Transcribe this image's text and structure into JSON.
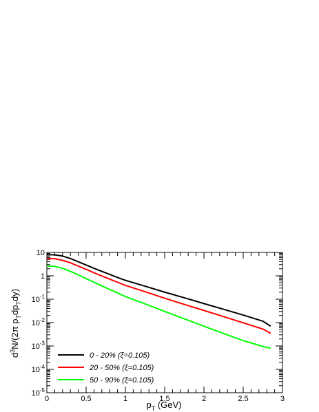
{
  "chart_data": {
    "type": "line",
    "title": "",
    "xlabel": "p_T (GeV)",
    "ylabel": "d³N/(2π p_T dp_T dy)",
    "xlim": [
      0,
      3
    ],
    "ylim": [
      1e-05,
      10
    ],
    "yscale": "log",
    "grid": false,
    "legend_position": "bottom-left",
    "x_ticks": [
      {
        "value": 0,
        "label": "0"
      },
      {
        "value": 0.5,
        "label": "0.5"
      },
      {
        "value": 1,
        "label": "1"
      },
      {
        "value": 1.5,
        "label": "1.5"
      },
      {
        "value": 2,
        "label": "2"
      },
      {
        "value": 2.5,
        "label": "2.5"
      },
      {
        "value": 3,
        "label": "3"
      }
    ],
    "y_ticks": [
      {
        "value": 1e-05,
        "label_base": "10",
        "label_exp": "-5"
      },
      {
        "value": 0.0001,
        "label_base": "10",
        "label_exp": "-4"
      },
      {
        "value": 0.001,
        "label_base": "10",
        "label_exp": "-3"
      },
      {
        "value": 0.01,
        "label_base": "10",
        "label_exp": "-2"
      },
      {
        "value": 0.1,
        "label_base": "10",
        "label_exp": "-1"
      },
      {
        "value": 1,
        "label_base": "1",
        "label_exp": ""
      },
      {
        "value": 10,
        "label_base": "10",
        "label_exp": ""
      }
    ],
    "series": [
      {
        "name": "0 - 20%  (ξ=0.105)",
        "color": "#000000",
        "x": [
          0,
          0.1,
          0.2,
          0.3,
          0.4,
          0.5,
          0.6,
          0.7,
          0.8,
          0.9,
          1.0,
          1.25,
          1.5,
          1.75,
          2.0,
          2.25,
          2.5,
          2.75,
          2.85
        ],
        "y": [
          8.0,
          7.9,
          7.0,
          5.5,
          4.0,
          2.9,
          2.1,
          1.55,
          1.15,
          0.85,
          0.64,
          0.36,
          0.2,
          0.115,
          0.065,
          0.037,
          0.021,
          0.0115,
          0.007
        ]
      },
      {
        "name": "20 - 50% (ξ=0.105)",
        "color": "#ff0000",
        "x": [
          0,
          0.1,
          0.2,
          0.3,
          0.4,
          0.5,
          0.6,
          0.7,
          0.8,
          0.9,
          1.0,
          1.25,
          1.5,
          1.75,
          2.0,
          2.25,
          2.5,
          2.75,
          2.85
        ],
        "y": [
          5.5,
          5.4,
          4.6,
          3.6,
          2.6,
          1.9,
          1.35,
          0.98,
          0.72,
          0.53,
          0.39,
          0.21,
          0.11,
          0.06,
          0.033,
          0.018,
          0.0098,
          0.0053,
          0.0035
        ]
      },
      {
        "name": "50 - 90% (ξ=0.105)",
        "color": "#00ff00",
        "x": [
          0,
          0.1,
          0.2,
          0.3,
          0.4,
          0.5,
          0.6,
          0.7,
          0.8,
          0.9,
          1.0,
          1.25,
          1.5,
          1.75,
          2.0,
          2.25,
          2.5,
          2.75,
          2.85
        ],
        "y": [
          2.6,
          2.55,
          2.1,
          1.55,
          1.1,
          0.76,
          0.53,
          0.37,
          0.26,
          0.185,
          0.13,
          0.063,
          0.03,
          0.0145,
          0.007,
          0.0034,
          0.0017,
          0.00095,
          0.0008
        ]
      }
    ]
  }
}
